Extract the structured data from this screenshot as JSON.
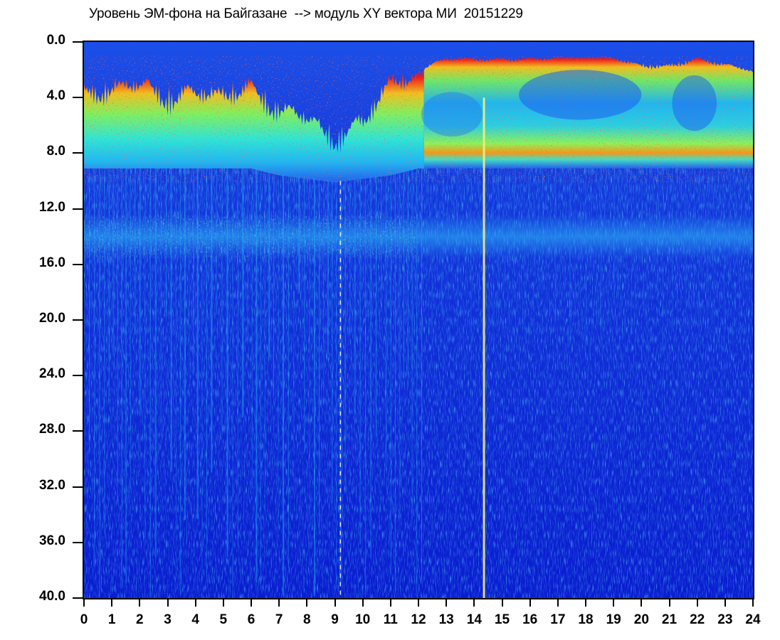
{
  "chart_data": {
    "type": "heatmap",
    "title": "Уровень ЭМ-фона на Байгазане  --> модуль XY вектора МИ  20151229",
    "xlabel": "",
    "ylabel": "",
    "xlim": [
      0,
      24
    ],
    "ylim": [
      40,
      0
    ],
    "y_inverted": true,
    "x_ticks": [
      "0",
      "1",
      "2",
      "3",
      "4",
      "5",
      "6",
      "7",
      "8",
      "9",
      "10",
      "11",
      "12",
      "13",
      "14",
      "15",
      "16",
      "17",
      "18",
      "19",
      "20",
      "21",
      "22",
      "23",
      "24"
    ],
    "y_ticks": [
      "0.0",
      "4.0",
      "8.0",
      "12.0",
      "16.0",
      "20.0",
      "24.0",
      "28.0",
      "32.0",
      "36.0",
      "40.0"
    ],
    "colorscale": [
      "#0a1cd0",
      "#1e5ef0",
      "#1fb3f5",
      "#2ef2d2",
      "#8cf25a",
      "#f0f020",
      "#f29a1a",
      "#ee1a1a"
    ],
    "background_color": "#0a1cd0",
    "high_activity_top_boundary": [
      {
        "x": 0,
        "y": 3
      },
      {
        "x": 1,
        "y": 2.5
      },
      {
        "x": 2,
        "y": 2.5
      },
      {
        "x": 3,
        "y": 3
      },
      {
        "x": 4,
        "y": 3
      },
      {
        "x": 5,
        "y": 3
      },
      {
        "x": 6,
        "y": 2.5
      },
      {
        "x": 7,
        "y": 4
      },
      {
        "x": 8,
        "y": 5
      },
      {
        "x": 9,
        "y": 6
      },
      {
        "x": 10,
        "y": 5
      },
      {
        "x": 11,
        "y": 2
      },
      {
        "x": 12,
        "y": 2
      },
      {
        "x": 13,
        "y": 1
      },
      {
        "x": 14,
        "y": 1
      },
      {
        "x": 15,
        "y": 1
      },
      {
        "x": 16,
        "y": 1
      },
      {
        "x": 17,
        "y": 1
      },
      {
        "x": 18,
        "y": 1
      },
      {
        "x": 19,
        "y": 1
      },
      {
        "x": 20,
        "y": 1.5
      },
      {
        "x": 21,
        "y": 1.5
      },
      {
        "x": 22,
        "y": 1
      },
      {
        "x": 23,
        "y": 1.5
      },
      {
        "x": 24,
        "y": 2
      }
    ],
    "activity_band_bottom": [
      {
        "x": 0,
        "y": 8.5
      },
      {
        "x": 6,
        "y": 8.5
      },
      {
        "x": 7,
        "y": 9
      },
      {
        "x": 9,
        "y": 9.5
      },
      {
        "x": 11,
        "y": 9
      },
      {
        "x": 12,
        "y": 8.5
      },
      {
        "x": 24,
        "y": 8.5
      }
    ],
    "secondary_band": {
      "x_range": [
        0,
        24
      ],
      "y_range": [
        13,
        15
      ]
    },
    "vertical_streaks": [
      {
        "x": 7.8,
        "y_from": 8,
        "y_to": 40
      },
      {
        "x": 8.9,
        "y_from": 8,
        "y_to": 40
      },
      {
        "x": 9.2,
        "y_from": 8,
        "y_to": 40
      },
      {
        "x": 10.9,
        "y_from": 8,
        "y_to": 40
      },
      {
        "x": 14.35,
        "y_from": 4,
        "y_to": 40
      },
      {
        "x": 20.3,
        "y_from": 4,
        "y_to": 40
      }
    ]
  }
}
